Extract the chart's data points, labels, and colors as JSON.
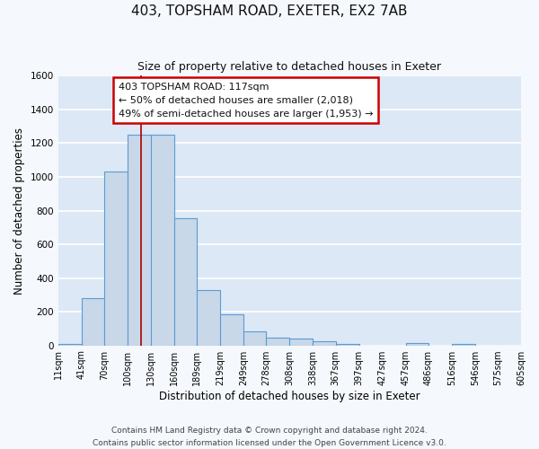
{
  "title": "403, TOPSHAM ROAD, EXETER, EX2 7AB",
  "subtitle": "Size of property relative to detached houses in Exeter",
  "xlabel": "Distribution of detached houses by size in Exeter",
  "ylabel": "Number of detached properties",
  "bar_color": "#c8d8e8",
  "bar_edge_color": "#5b9bd5",
  "background_color": "#dce8f5",
  "grid_color": "#ffffff",
  "annotation_box_color": "#cc0000",
  "bins": [
    11,
    41,
    70,
    100,
    130,
    160,
    189,
    219,
    249,
    278,
    308,
    338,
    367,
    397,
    427,
    457,
    486,
    516,
    546,
    575,
    605
  ],
  "bin_labels": [
    "11sqm",
    "41sqm",
    "70sqm",
    "100sqm",
    "130sqm",
    "160sqm",
    "189sqm",
    "219sqm",
    "249sqm",
    "278sqm",
    "308sqm",
    "338sqm",
    "367sqm",
    "397sqm",
    "427sqm",
    "457sqm",
    "486sqm",
    "516sqm",
    "546sqm",
    "575sqm",
    "605sqm"
  ],
  "counts": [
    10,
    280,
    1030,
    1250,
    1250,
    755,
    330,
    185,
    85,
    47,
    38,
    25,
    10,
    0,
    0,
    12,
    0,
    10,
    0,
    0,
    0
  ],
  "vline_x": 117,
  "annotation_title": "403 TOPSHAM ROAD: 117sqm",
  "annotation_line1": "← 50% of detached houses are smaller (2,018)",
  "annotation_line2": "49% of semi-detached houses are larger (1,953) →",
  "ylim": [
    0,
    1600
  ],
  "yticks": [
    0,
    200,
    400,
    600,
    800,
    1000,
    1200,
    1400,
    1600
  ],
  "footer1": "Contains HM Land Registry data © Crown copyright and database right 2024.",
  "footer2": "Contains public sector information licensed under the Open Government Licence v3.0."
}
